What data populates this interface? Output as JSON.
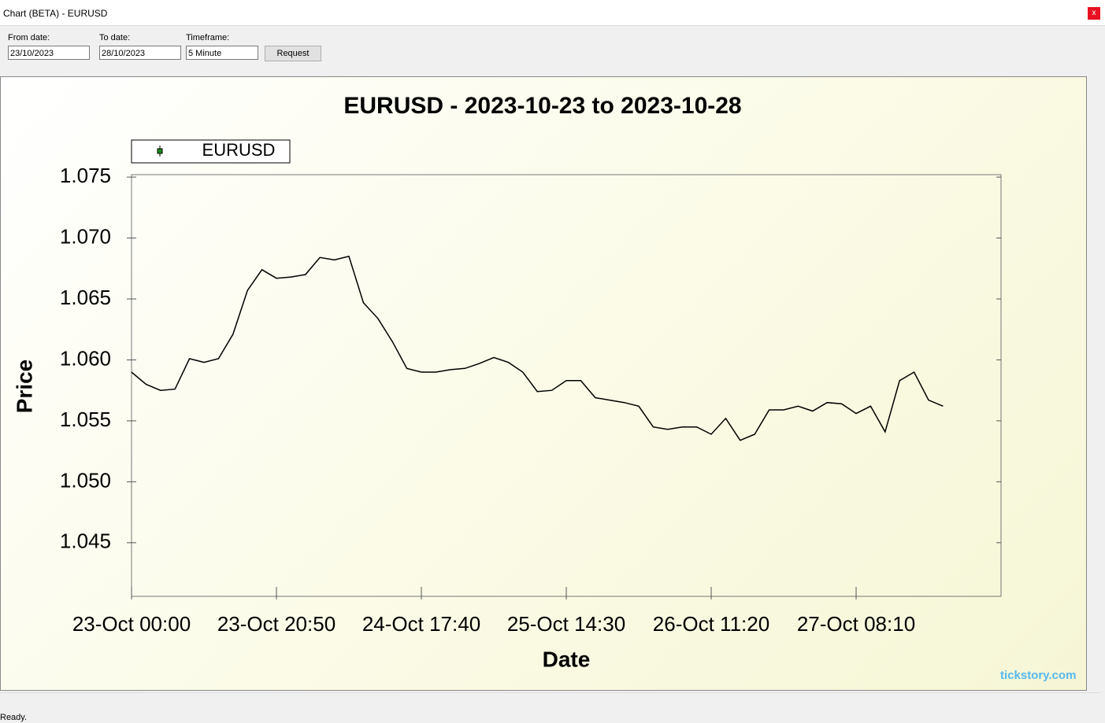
{
  "window": {
    "title": "Chart (BETA) - EURUSD",
    "close": "x"
  },
  "toolbar": {
    "from_label": "From date:",
    "from_value": "23/10/2023",
    "to_label": "To date:",
    "to_value": "28/10/2023",
    "timeframe_label": "Timeframe:",
    "timeframe_value": "5 Minute",
    "button": "Request"
  },
  "status": "Ready.",
  "watermark": "tickstory.com",
  "chart_data": {
    "type": "line",
    "title": "EURUSD - 2023-10-23 to 2023-10-28",
    "x_label": "Date",
    "y_label": "Price",
    "x": [
      0,
      25,
      50,
      75,
      100,
      125,
      150,
      175,
      200,
      225,
      250,
      275,
      300,
      325,
      350,
      375,
      400,
      425,
      450,
      475,
      500,
      525,
      550,
      575,
      600,
      625,
      650,
      675,
      700,
      725,
      750,
      775,
      800,
      825,
      850,
      875,
      900,
      925,
      950,
      975,
      1000,
      1025,
      1050,
      1075,
      1100,
      1125,
      1150,
      1175,
      1200,
      1225,
      1250,
      1275,
      1300,
      1325,
      1350,
      1375,
      1400
    ],
    "series": [
      {
        "name": "EURUSD",
        "color": "#000000",
        "values": [
          1.059,
          1.058,
          1.0575,
          1.0576,
          1.0601,
          1.0598,
          1.0601,
          1.0621,
          1.0657,
          1.0674,
          1.0667,
          1.0668,
          1.067,
          1.0684,
          1.0682,
          1.0685,
          1.0647,
          1.0634,
          1.0615,
          1.0593,
          1.059,
          1.059,
          1.0592,
          1.0593,
          1.0597,
          1.0602,
          1.0598,
          1.059,
          1.0574,
          1.0575,
          1.0583,
          1.0583,
          1.0569,
          1.0567,
          1.0565,
          1.0562,
          1.0545,
          1.0543,
          1.0545,
          1.0545,
          1.0539,
          1.0552,
          1.0534,
          1.0539,
          1.0559,
          1.0559,
          1.0562,
          1.0558,
          1.0565,
          1.0564,
          1.0556,
          1.0562,
          1.0541,
          1.0583,
          1.059,
          1.0567,
          1.0562
        ]
      }
    ],
    "xlim": [
      0,
      1500
    ],
    "xticks": [
      {
        "value": 0,
        "label": "23-Oct 00:00"
      },
      {
        "value": 250,
        "label": "23-Oct 20:50"
      },
      {
        "value": 500,
        "label": "24-Oct 17:40"
      },
      {
        "value": 750,
        "label": "25-Oct 14:30"
      },
      {
        "value": 1000,
        "label": "26-Oct 11:20"
      },
      {
        "value": 1250,
        "label": "27-Oct 08:10"
      }
    ],
    "ylim": [
      1.0406,
      1.0752
    ],
    "yticks": [
      1.075,
      {
        "value": 1.07,
        "label": "1.070"
      },
      1.065,
      {
        "value": 1.06,
        "label": "1.060"
      },
      1.055,
      {
        "value": 1.05,
        "label": "1.050"
      },
      1.045
    ],
    "grid": false,
    "legend": "upper left"
  }
}
